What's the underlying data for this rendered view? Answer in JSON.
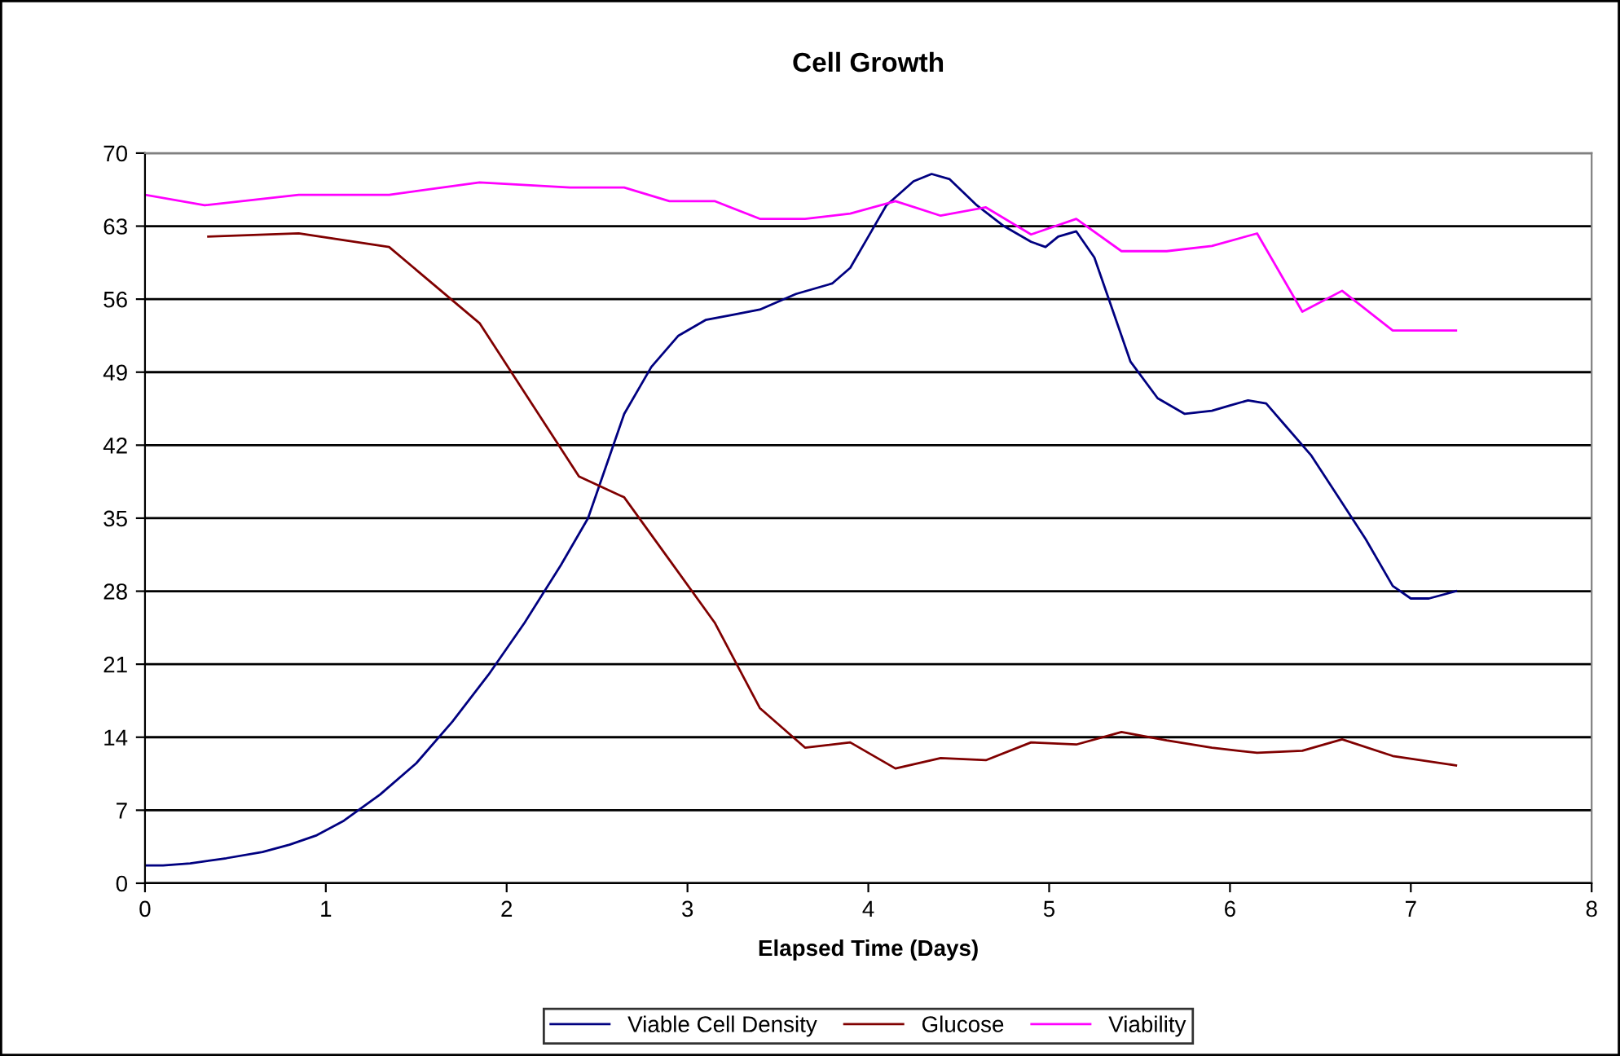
{
  "chart_data": {
    "type": "line",
    "title": "Cell Growth",
    "xlabel": "Elapsed Time (Days)",
    "xlim": [
      0,
      8
    ],
    "xticks": [
      0,
      1,
      2,
      3,
      4,
      5,
      6,
      7,
      8
    ],
    "ylim": [
      0,
      70
    ],
    "yticks": [
      0,
      7,
      14,
      21,
      28,
      35,
      42,
      49,
      56,
      63,
      70
    ],
    "grid": "y",
    "legend": "bottom",
    "marker": "none",
    "line_style": "solid",
    "series": [
      {
        "name": "Viable Cell Density",
        "color": "#000080",
        "x": [
          0,
          0.1,
          0.25,
          0.45,
          0.65,
          0.8,
          0.95,
          1.1,
          1.3,
          1.5,
          1.7,
          1.9,
          2.1,
          2.3,
          2.45,
          2.55,
          2.65,
          2.8,
          2.95,
          3.1,
          3.25,
          3.4,
          3.6,
          3.8,
          3.9,
          4.0,
          4.1,
          4.25,
          4.35,
          4.45,
          4.6,
          4.75,
          4.9,
          4.98,
          5.05,
          5.15,
          5.25,
          5.35,
          5.45,
          5.6,
          5.75,
          5.9,
          6.0,
          6.1,
          6.2,
          6.3,
          6.45,
          6.6,
          6.75,
          6.9,
          7.0,
          7.1,
          7.25
        ],
        "values": [
          1.7,
          1.7,
          1.9,
          2.4,
          3,
          3.7,
          4.6,
          6,
          8.5,
          11.5,
          15.5,
          20,
          25,
          30.5,
          35,
          40,
          45,
          49.5,
          52.5,
          54,
          54.5,
          55,
          56.5,
          57.5,
          59,
          62,
          65,
          67.3,
          68,
          67.5,
          65,
          63,
          61.5,
          61,
          62,
          62.5,
          60,
          55,
          50,
          46.5,
          45,
          45.3,
          45.8,
          46.3,
          46,
          44,
          41,
          37,
          33,
          28.5,
          27.3,
          27.3,
          28
        ]
      },
      {
        "name": "Glucose",
        "color": "#800000",
        "x": [
          0.35,
          0.85,
          1.35,
          1.85,
          2.4,
          2.65,
          2.9,
          3.15,
          3.4,
          3.65,
          3.9,
          4.15,
          4.4,
          4.65,
          4.9,
          5.15,
          5.4,
          5.65,
          5.9,
          6.15,
          6.4,
          6.62,
          6.9,
          7.25
        ],
        "values": [
          62,
          62.3,
          61,
          53.7,
          39,
          37,
          31,
          25,
          16.8,
          13,
          13.5,
          11,
          12,
          11.8,
          13.5,
          13.3,
          14.5,
          13.7,
          13,
          12.5,
          12.7,
          13.8,
          12.2,
          11.3
        ]
      },
      {
        "name": "Viability",
        "color": "#ff00ff",
        "x": [
          0,
          0.33,
          0.85,
          1.35,
          1.85,
          2.35,
          2.65,
          2.9,
          3.15,
          3.4,
          3.65,
          3.9,
          4.15,
          4.4,
          4.65,
          4.9,
          5.15,
          5.4,
          5.65,
          5.9,
          6.15,
          6.4,
          6.62,
          6.9,
          7.25
        ],
        "values": [
          66,
          65,
          66,
          66,
          67.2,
          66.7,
          66.7,
          65.4,
          65.4,
          63.7,
          63.7,
          64.2,
          65.4,
          64,
          64.8,
          62.2,
          63.7,
          60.6,
          60.6,
          61.1,
          62.3,
          54.8,
          56.8,
          53,
          53
        ]
      }
    ]
  }
}
